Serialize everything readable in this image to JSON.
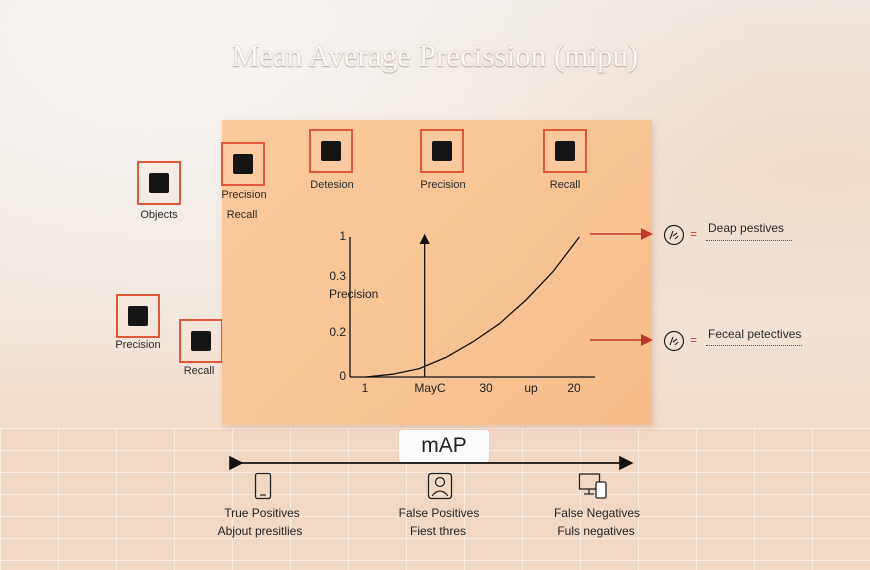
{
  "title": "Mean Average Precission (mipu)",
  "outside_nodes": [
    {
      "label": "Objects"
    },
    {
      "label": "Precision"
    },
    {
      "label": "Recall"
    }
  ],
  "board_nodes": [
    {
      "label_1": "Precision",
      "label_2": "Recall"
    },
    {
      "label": "Detesion"
    },
    {
      "label": "Precision"
    },
    {
      "label": "Recall"
    }
  ],
  "chart_data": {
    "type": "line",
    "ylabel": "Precision",
    "y_ticks": [
      "1",
      "0.3",
      "0.2",
      "0"
    ],
    "x_ticks": [
      "1",
      "MayC",
      "30",
      "up",
      "20"
    ],
    "series": [
      {
        "x": [
          1,
          1.5,
          2,
          2.5,
          3,
          3.5,
          4,
          4.5,
          5
        ],
        "y": [
          0,
          0.02,
          0.06,
          0.14,
          0.25,
          0.38,
          0.55,
          0.75,
          1.0
        ]
      }
    ],
    "vertical_marker_x": 2.1
  },
  "side_annotations": [
    {
      "text": "Deap pestives",
      "icon": "hand-icon"
    },
    {
      "text": "Feceal petectives",
      "icon": "hand-icon"
    }
  ],
  "equals_sign": "=",
  "map_label": "mAP",
  "bottom_items": [
    {
      "label_1": "True Positives",
      "label_2": "Abjout presitlies",
      "icon": "phone-icon"
    },
    {
      "label_1": "False Positives",
      "label_2": "Fiest thres",
      "icon": "person-icon"
    },
    {
      "label_1": "False Negatives",
      "label_2": "Fuls negatives",
      "icon": "computer-icon"
    }
  ],
  "colors": {
    "accent": "#e0573a",
    "arrow": "#c0392b",
    "board": "#f9c596"
  }
}
